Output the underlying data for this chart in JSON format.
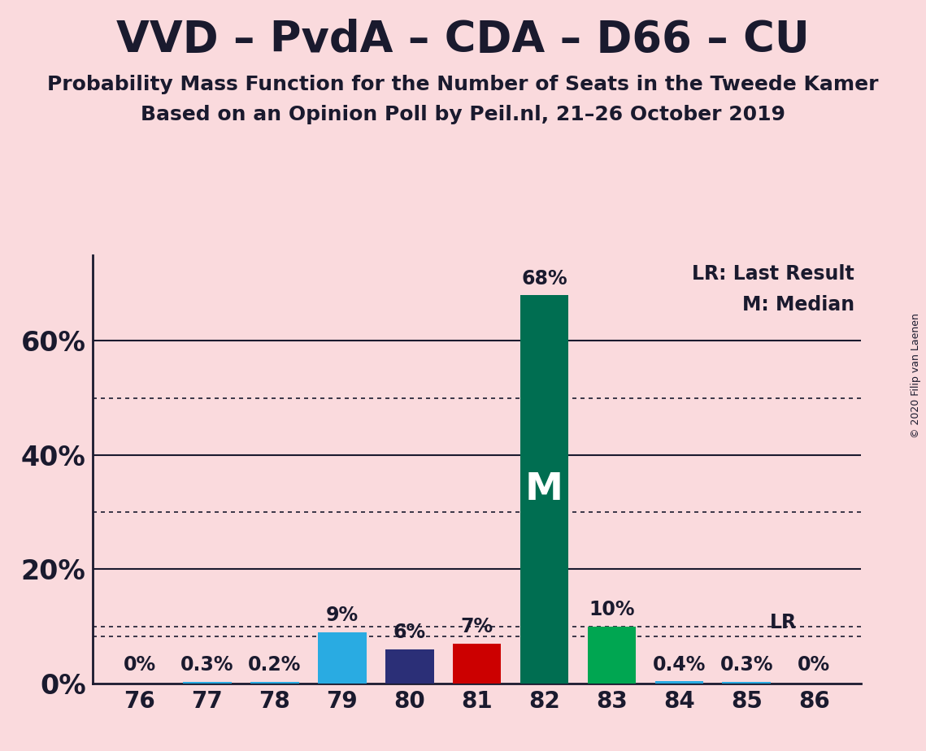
{
  "title": "VVD – PvdA – CDA – D66 – CU",
  "subtitle1": "Probability Mass Function for the Number of Seats in the Tweede Kamer",
  "subtitle2": "Based on an Opinion Poll by Peil.nl, 21–26 October 2019",
  "copyright": "© 2020 Filip van Laenen",
  "seats": [
    76,
    77,
    78,
    79,
    80,
    81,
    82,
    83,
    84,
    85,
    86
  ],
  "probabilities": [
    0.0,
    0.3,
    0.2,
    9.0,
    6.0,
    7.0,
    68.0,
    10.0,
    0.4,
    0.3,
    0.0
  ],
  "bar_colors": [
    "#29ABE2",
    "#29ABE2",
    "#29ABE2",
    "#29ABE2",
    "#2B2F77",
    "#CC0000",
    "#006E51",
    "#00A651",
    "#29ABE2",
    "#29ABE2",
    "#29ABE2"
  ],
  "labels": [
    "0%",
    "0.3%",
    "0.2%",
    "9%",
    "6%",
    "7%",
    "68%",
    "10%",
    "0.4%",
    "0.3%",
    "0%"
  ],
  "median_seat": 82,
  "lr_seat": 85,
  "lr_value": 8.3,
  "background_color": "#FADADD",
  "title_fontsize": 38,
  "subtitle_fontsize": 18,
  "label_fontsize": 17,
  "tick_fontsize": 20,
  "ytick_fontsize": 24,
  "ylim": [
    0,
    75
  ],
  "solid_grid": [
    20,
    40,
    60
  ],
  "dotted_grid": [
    10,
    30,
    50
  ],
  "bar_width": 0.72
}
